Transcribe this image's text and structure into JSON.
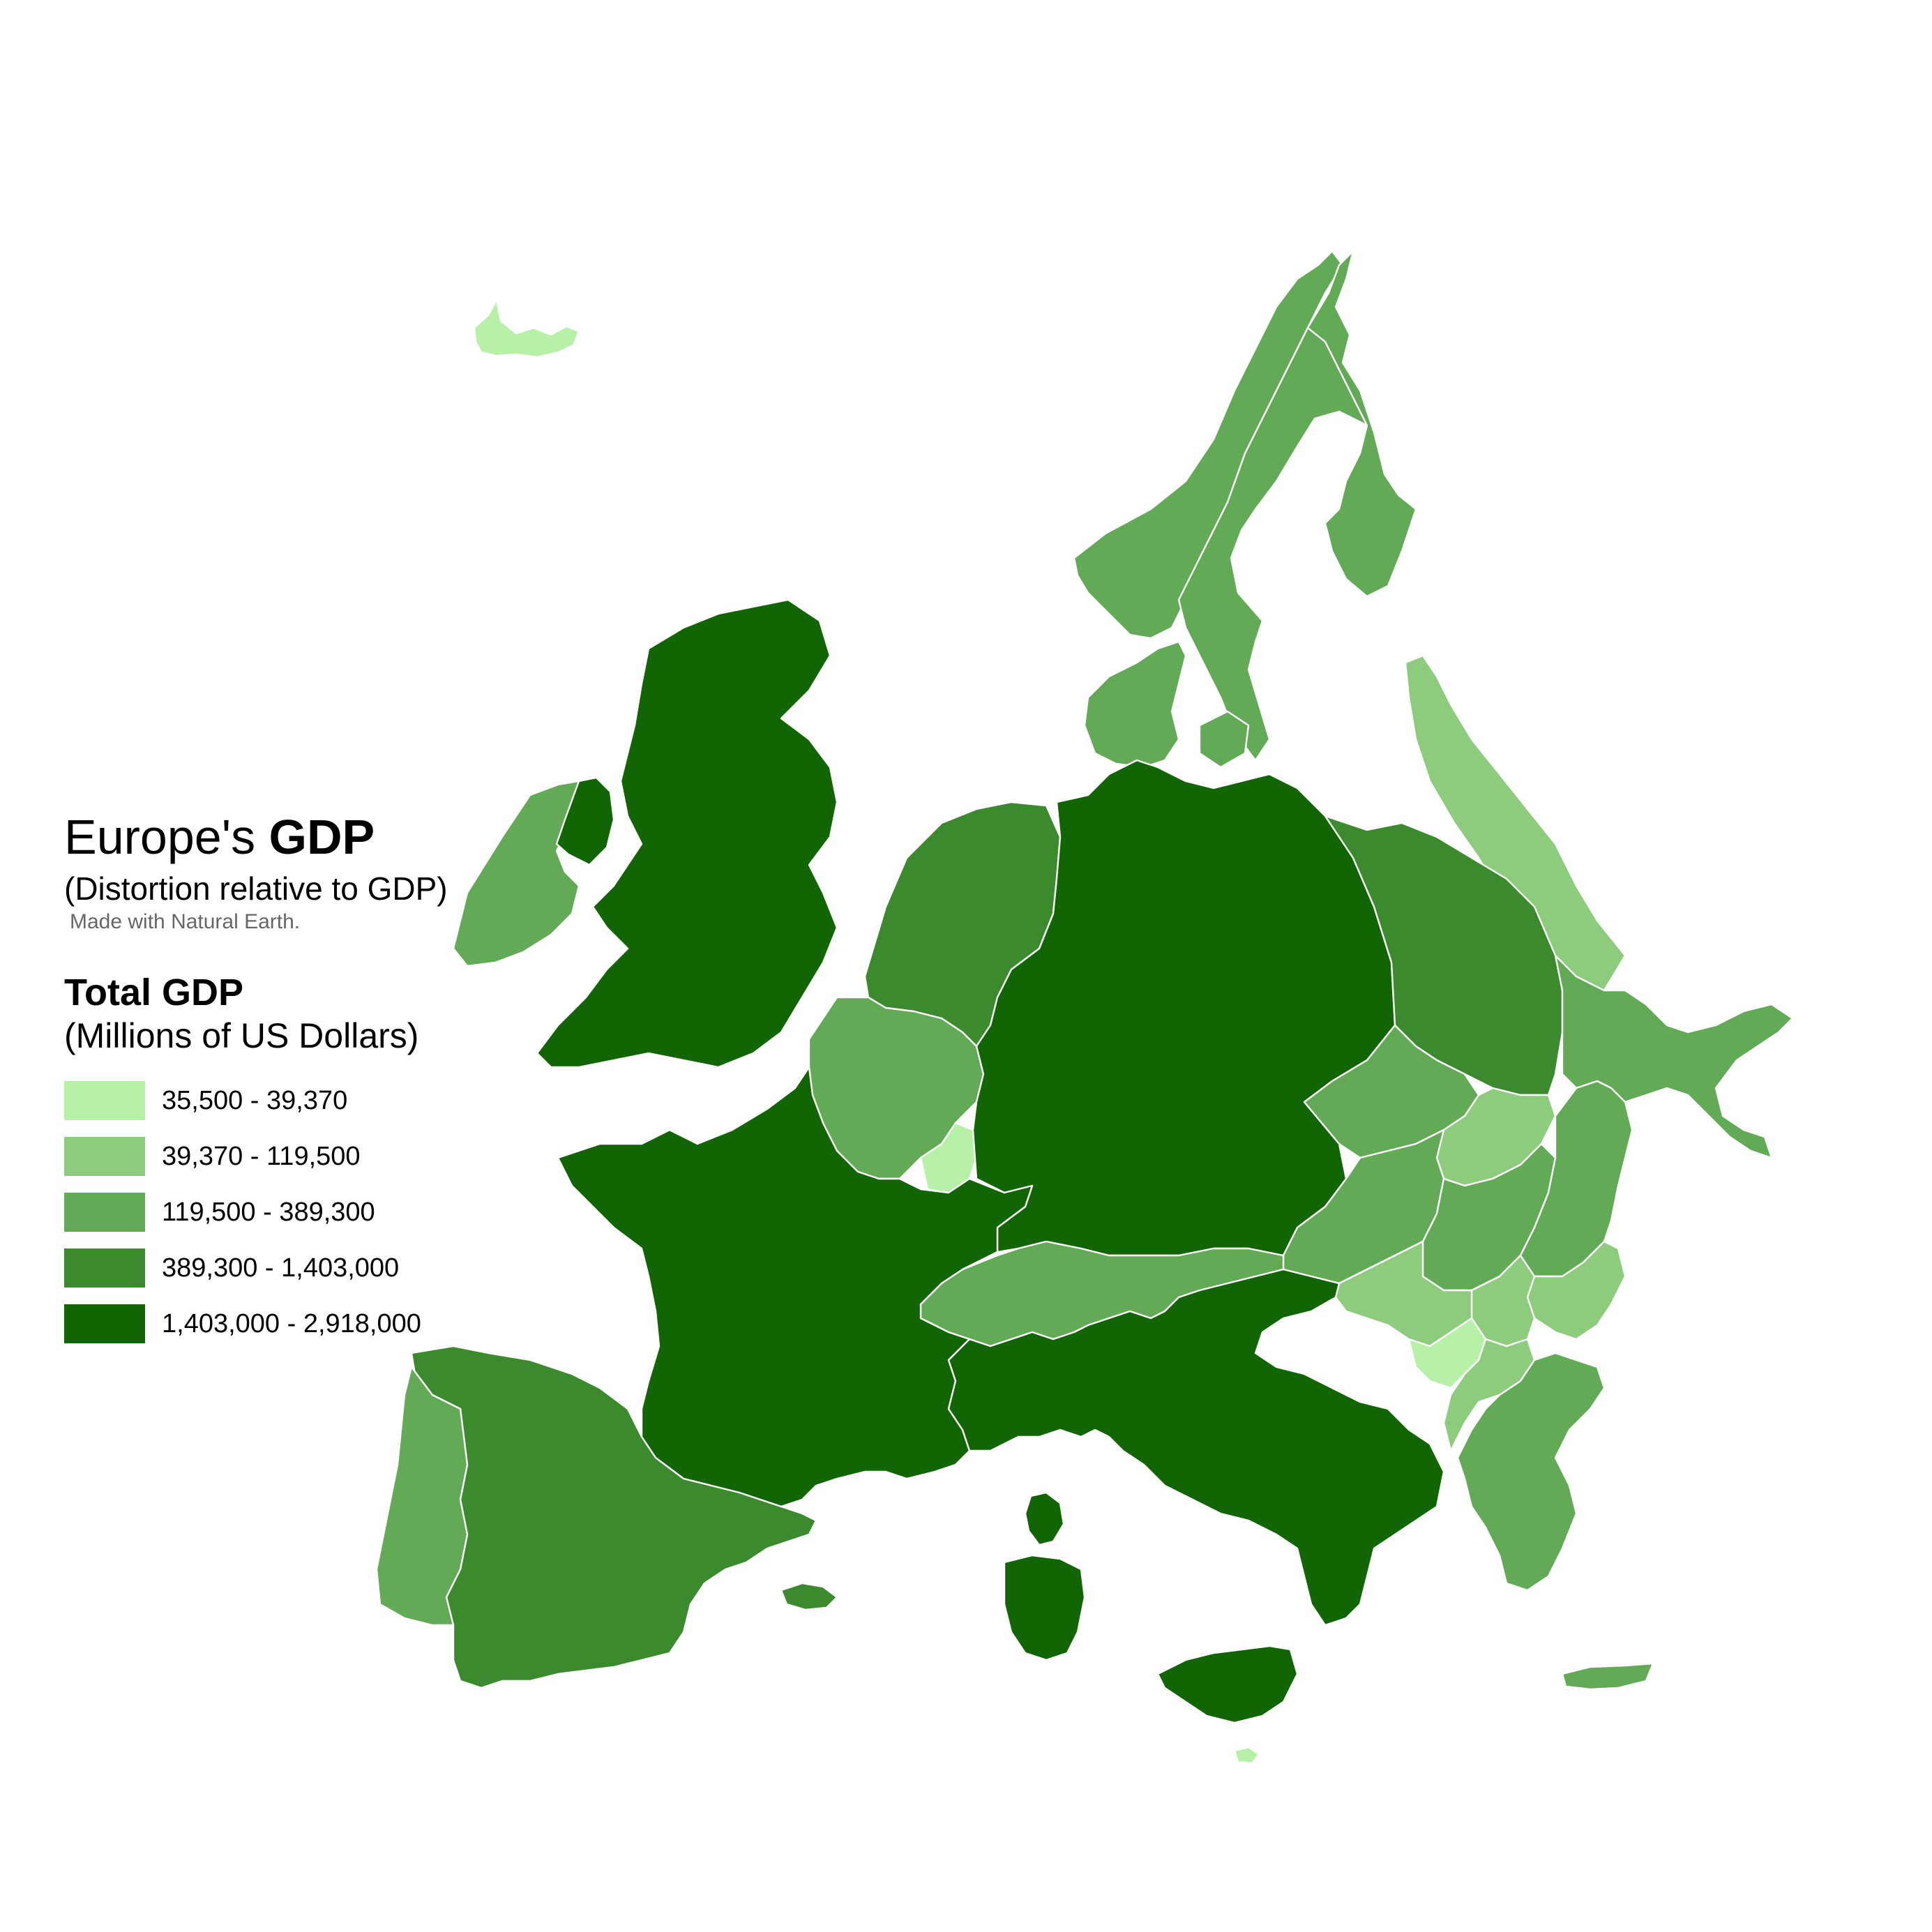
{
  "title": {
    "prefix": "Europe's ",
    "emphasis": "GDP"
  },
  "subtitle": "(Distortion relative to GDP)",
  "caption": "Made with Natural Earth.",
  "legend": {
    "title": "Total GDP",
    "subtitle": "(Millions of US Dollars)",
    "classes": [
      {
        "label": "35,500 - 39,370",
        "color": "#b7f0a7"
      },
      {
        "label": "39,370 - 119,500",
        "color": "#8ccc7c"
      },
      {
        "label": "119,500 - 389,300",
        "color": "#63aa56"
      },
      {
        "label": "389,300 - 1,403,000",
        "color": "#3b8a2e"
      },
      {
        "label": "1,403,000 - 2,918,000",
        "color": "#116502"
      }
    ]
  },
  "regions": [
    {
      "id": "iceland",
      "class": 0
    },
    {
      "id": "norway",
      "class": 2
    },
    {
      "id": "sweden",
      "class": 2
    },
    {
      "id": "finland",
      "class": 2
    },
    {
      "id": "estonia-latvia-lithuania",
      "class": 1
    },
    {
      "id": "denmark",
      "class": 2
    },
    {
      "id": "ireland",
      "class": 2
    },
    {
      "id": "northern-ireland",
      "class": 4
    },
    {
      "id": "great-britain",
      "class": 4
    },
    {
      "id": "netherlands",
      "class": 3
    },
    {
      "id": "belgium",
      "class": 2
    },
    {
      "id": "luxembourg",
      "class": 0
    },
    {
      "id": "germany",
      "class": 4
    },
    {
      "id": "poland",
      "class": 3
    },
    {
      "id": "czechia",
      "class": 2
    },
    {
      "id": "austria",
      "class": 2
    },
    {
      "id": "slovakia",
      "class": 1
    },
    {
      "id": "hungary",
      "class": 2
    },
    {
      "id": "romania",
      "class": 2
    },
    {
      "id": "ukraine-belarus",
      "class": 2
    },
    {
      "id": "bulgaria",
      "class": 1
    },
    {
      "id": "serbia",
      "class": 1
    },
    {
      "id": "croatia-slovenia",
      "class": 1
    },
    {
      "id": "bosnia-montenegro",
      "class": 0
    },
    {
      "id": "albania-macedonia",
      "class": 1
    },
    {
      "id": "greece",
      "class": 2
    },
    {
      "id": "crete",
      "class": 2
    },
    {
      "id": "switzerland",
      "class": 2
    },
    {
      "id": "france",
      "class": 4
    },
    {
      "id": "corsica",
      "class": 4
    },
    {
      "id": "italy",
      "class": 4
    },
    {
      "id": "sardinia",
      "class": 4
    },
    {
      "id": "sicily",
      "class": 4
    },
    {
      "id": "malta",
      "class": 0
    },
    {
      "id": "spain",
      "class": 3
    },
    {
      "id": "balearic-islands",
      "class": 3
    },
    {
      "id": "portugal",
      "class": 2
    }
  ]
}
